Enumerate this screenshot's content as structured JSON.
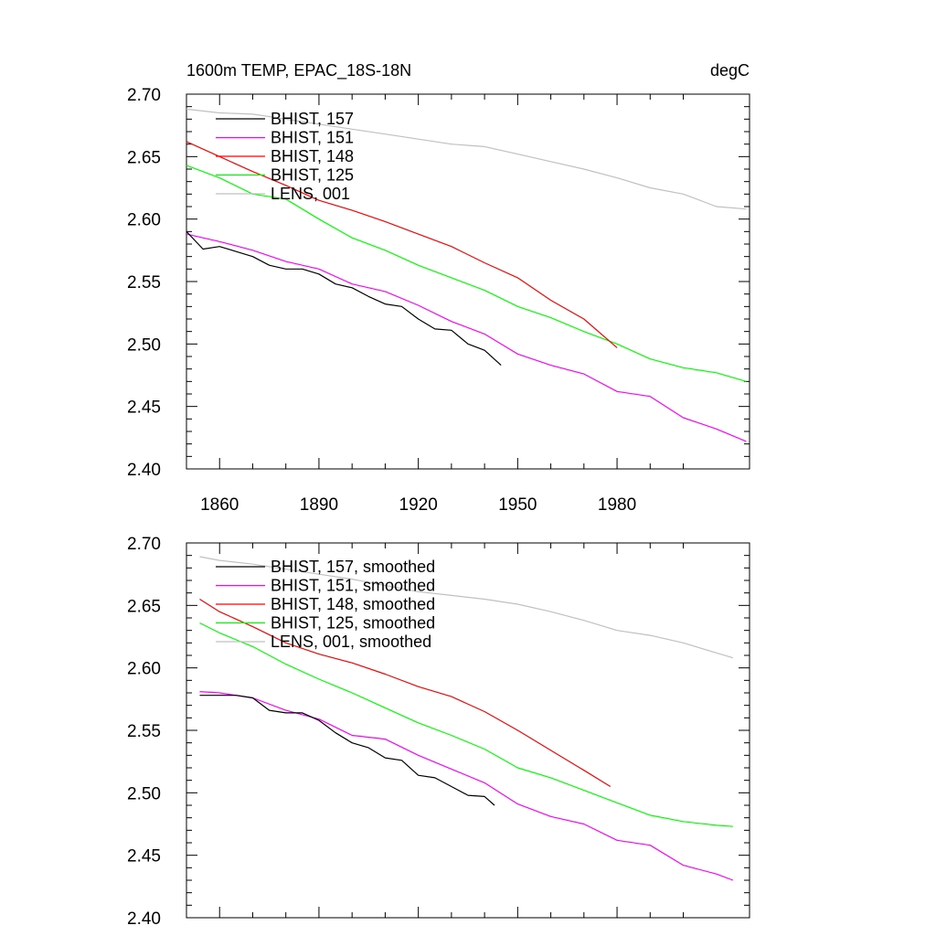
{
  "chart_data": [
    {
      "type": "line",
      "title": "1600m TEMP, EPAC_18S-18N",
      "units": "degC",
      "ylim": [
        2.4,
        2.7
      ],
      "xlim": [
        1850,
        2020
      ],
      "yticks": [
        "2.70",
        "2.65",
        "2.60",
        "2.55",
        "2.50",
        "2.45",
        "2.40"
      ],
      "xticks": [
        "1860",
        "1890",
        "1920",
        "1950",
        "1980"
      ],
      "series": [
        {
          "name": "BHIST, 157",
          "color": "#000000",
          "x": [
            1850,
            1855,
            1860,
            1865,
            1870,
            1875,
            1880,
            1885,
            1890,
            1895,
            1900,
            1905,
            1910,
            1915,
            1920,
            1925,
            1930,
            1935,
            1940,
            1945
          ],
          "y": [
            2.59,
            2.576,
            2.578,
            2.574,
            2.57,
            2.563,
            2.56,
            2.56,
            2.556,
            2.548,
            2.545,
            2.538,
            2.532,
            2.53,
            2.52,
            2.512,
            2.511,
            2.5,
            2.495,
            2.483
          ]
        },
        {
          "name": "BHIST, 151",
          "color": "#ff00ff",
          "x": [
            1850,
            1860,
            1870,
            1880,
            1890,
            1900,
            1910,
            1920,
            1930,
            1940,
            1950,
            1960,
            1970,
            1980,
            1990,
            2000,
            2010,
            2019
          ],
          "y": [
            2.588,
            2.582,
            2.575,
            2.566,
            2.56,
            2.548,
            2.542,
            2.531,
            2.518,
            2.508,
            2.492,
            2.483,
            2.476,
            2.462,
            2.458,
            2.441,
            2.432,
            2.422
          ]
        },
        {
          "name": "BHIST, 148",
          "color": "#ff0000",
          "x": [
            1850,
            1860,
            1870,
            1880,
            1890,
            1900,
            1910,
            1920,
            1930,
            1940,
            1950,
            1960,
            1970,
            1980
          ],
          "y": [
            2.662,
            2.65,
            2.638,
            2.627,
            2.615,
            2.607,
            2.598,
            2.588,
            2.578,
            2.565,
            2.553,
            2.535,
            2.52,
            2.497
          ]
        },
        {
          "name": "BHIST, 125",
          "color": "#00ff00",
          "x": [
            1850,
            1860,
            1870,
            1880,
            1890,
            1900,
            1910,
            1920,
            1930,
            1940,
            1950,
            1960,
            1970,
            1980,
            1990,
            2000,
            2010,
            2019
          ],
          "y": [
            2.643,
            2.633,
            2.62,
            2.616,
            2.6,
            2.585,
            2.575,
            2.563,
            2.553,
            2.543,
            2.53,
            2.521,
            2.51,
            2.5,
            2.488,
            2.481,
            2.477,
            2.47
          ]
        },
        {
          "name": "LENS, 001",
          "color": "#c0c0c0",
          "x": [
            1850,
            1860,
            1870,
            1880,
            1890,
            1900,
            1910,
            1920,
            1930,
            1940,
            1950,
            1960,
            1970,
            1980,
            1990,
            2000,
            2010,
            2019
          ],
          "y": [
            2.688,
            2.685,
            2.684,
            2.68,
            2.676,
            2.672,
            2.668,
            2.664,
            2.66,
            2.658,
            2.652,
            2.646,
            2.64,
            2.633,
            2.625,
            2.62,
            2.61,
            2.608
          ]
        }
      ]
    },
    {
      "type": "line",
      "title": "",
      "ylim": [
        2.4,
        2.7
      ],
      "xlim": [
        1850,
        2020
      ],
      "yticks": [
        "2.70",
        "2.65",
        "2.60",
        "2.55",
        "2.50",
        "2.45",
        "2.40"
      ],
      "xticks": [],
      "series": [
        {
          "name": "BHIST, 157, smoothed",
          "color": "#000000",
          "x": [
            1854,
            1860,
            1865,
            1870,
            1875,
            1880,
            1885,
            1890,
            1895,
            1900,
            1905,
            1910,
            1915,
            1920,
            1925,
            1930,
            1935,
            1940,
            1943
          ],
          "y": [
            2.578,
            2.578,
            2.578,
            2.576,
            2.566,
            2.564,
            2.564,
            2.558,
            2.548,
            2.54,
            2.536,
            2.528,
            2.526,
            2.514,
            2.512,
            2.505,
            2.498,
            2.497,
            2.49
          ]
        },
        {
          "name": "BHIST, 151, smoothed",
          "color": "#ff00ff",
          "x": [
            1854,
            1860,
            1870,
            1880,
            1890,
            1900,
            1910,
            1920,
            1930,
            1940,
            1950,
            1960,
            1970,
            1980,
            1990,
            2000,
            2010,
            2015
          ],
          "y": [
            2.581,
            2.58,
            2.576,
            2.566,
            2.559,
            2.546,
            2.543,
            2.53,
            2.519,
            2.508,
            2.491,
            2.481,
            2.475,
            2.462,
            2.458,
            2.442,
            2.435,
            2.43
          ]
        },
        {
          "name": "BHIST, 148, smoothed",
          "color": "#ff0000",
          "x": [
            1854,
            1860,
            1870,
            1880,
            1890,
            1900,
            1910,
            1920,
            1930,
            1940,
            1950,
            1960,
            1970,
            1978
          ],
          "y": [
            2.655,
            2.645,
            2.633,
            2.62,
            2.611,
            2.604,
            2.595,
            2.585,
            2.577,
            2.565,
            2.55,
            2.534,
            2.518,
            2.505
          ]
        },
        {
          "name": "BHIST, 125, smoothed",
          "color": "#00ff00",
          "x": [
            1854,
            1860,
            1870,
            1880,
            1890,
            1900,
            1910,
            1920,
            1930,
            1940,
            1950,
            1960,
            1970,
            1980,
            1990,
            2000,
            2010,
            2015
          ],
          "y": [
            2.636,
            2.628,
            2.617,
            2.603,
            2.591,
            2.58,
            2.568,
            2.556,
            2.546,
            2.535,
            2.52,
            2.512,
            2.502,
            2.492,
            2.482,
            2.477,
            2.474,
            2.473
          ]
        },
        {
          "name": "LENS, 001, smoothed",
          "color": "#c0c0c0",
          "x": [
            1854,
            1860,
            1870,
            1880,
            1890,
            1900,
            1910,
            1920,
            1930,
            1940,
            1950,
            1960,
            1970,
            1980,
            1990,
            2000,
            2010,
            2015
          ],
          "y": [
            2.689,
            2.686,
            2.683,
            2.679,
            2.675,
            2.671,
            2.666,
            2.661,
            2.658,
            2.655,
            2.651,
            2.645,
            2.638,
            2.63,
            2.626,
            2.62,
            2.612,
            2.608
          ]
        }
      ]
    }
  ]
}
